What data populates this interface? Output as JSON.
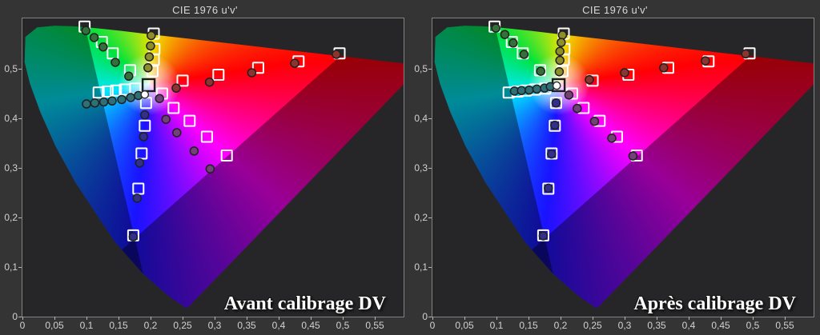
{
  "page": {
    "background": "#343434"
  },
  "panels": [
    {
      "title": "CIE 1976 u'v'",
      "caption": "Avant calibrage DV"
    },
    {
      "title": "CIE 1976 u'v'",
      "caption": "Après calibrage DV"
    }
  ],
  "axes": {
    "x_tick_labels": [
      "0",
      "0,05",
      "0,1",
      "0,15",
      "0,2",
      "0,25",
      "0,3",
      "0,35",
      "0,4",
      "0,45",
      "0,5",
      "0,55"
    ],
    "y_tick_labels": [
      "0",
      "0,1",
      "0,2",
      "0,3",
      "0,4",
      "0,5"
    ],
    "x_tick_values": [
      0,
      0.05,
      0.1,
      0.15,
      0.2,
      0.25,
      0.3,
      0.35,
      0.4,
      0.45,
      0.5,
      0.55
    ],
    "y_tick_values": [
      0,
      0.1,
      0.2,
      0.3,
      0.4,
      0.5
    ],
    "xlim": [
      0,
      0.595
    ],
    "ylim": [
      0,
      0.602
    ]
  },
  "marker_colors": {
    "target_stroke": "#ffffff",
    "white_target_stroke": "#1c1c1c",
    "circle_stroke": "#202020",
    "green": "#35703a",
    "yellow": "#8e8e2a",
    "red": "#8c3430",
    "magenta": "#73407a",
    "blue": "#31308c",
    "cyan": "#2e7076",
    "white": "#ffffff"
  },
  "chart_data": [
    {
      "type": "scatter",
      "title": "CIE 1976 u'v'",
      "annotation": "Avant calibrage DV",
      "legend": "none",
      "grid": false,
      "targets": {
        "marker": "open-square",
        "white": [
          0.197,
          0.467
        ],
        "branches": {
          "green": [
            [
              0.097,
              0.585
            ],
            [
              0.124,
              0.554
            ],
            [
              0.141,
              0.531
            ],
            [
              0.168,
              0.497
            ]
          ],
          "yellow": [
            [
              0.205,
              0.571
            ],
            [
              0.206,
              0.54
            ],
            [
              0.205,
              0.518
            ],
            [
              0.203,
              0.495
            ]
          ],
          "red": [
            [
              0.25,
              0.476
            ],
            [
              0.306,
              0.488
            ],
            [
              0.368,
              0.502
            ],
            [
              0.431,
              0.515
            ],
            [
              0.495,
              0.531
            ]
          ],
          "magenta": [
            [
              0.218,
              0.45
            ],
            [
              0.236,
              0.421
            ],
            [
              0.261,
              0.395
            ],
            [
              0.288,
              0.363
            ],
            [
              0.319,
              0.325
            ]
          ],
          "blue": [
            [
              0.193,
              0.431
            ],
            [
              0.191,
              0.385
            ],
            [
              0.186,
              0.329
            ],
            [
              0.181,
              0.258
            ],
            [
              0.173,
              0.164
            ]
          ],
          "cyan": [
            [
              0.176,
              0.46
            ],
            [
              0.16,
              0.458
            ],
            [
              0.146,
              0.456
            ],
            [
              0.133,
              0.454
            ],
            [
              0.119,
              0.452
            ]
          ]
        }
      },
      "measured": {
        "marker": "circle",
        "white": [
          0.191,
          0.448
        ],
        "branches": {
          "green": {
            "color": "green",
            "points": [
              [
                0.099,
                0.577
              ],
              [
                0.112,
                0.563
              ],
              [
                0.126,
                0.544
              ],
              [
                0.145,
                0.513
              ],
              [
                0.166,
                0.485
              ]
            ]
          },
          "yellow": {
            "color": "yellow",
            "points": [
              [
                0.201,
                0.567
              ],
              [
                0.2,
                0.546
              ],
              [
                0.198,
                0.524
              ],
              [
                0.196,
                0.502
              ]
            ]
          },
          "red": {
            "color": "red",
            "points": [
              [
                0.24,
                0.461
              ],
              [
                0.292,
                0.473
              ],
              [
                0.358,
                0.492
              ],
              [
                0.425,
                0.511
              ],
              [
                0.49,
                0.529
              ]
            ]
          },
          "magenta": {
            "color": "magenta",
            "points": [
              [
                0.214,
                0.44
              ],
              [
                0.224,
                0.398
              ],
              [
                0.241,
                0.371
              ],
              [
                0.268,
                0.334
              ],
              [
                0.293,
                0.298
              ]
            ]
          },
          "blue": {
            "color": "blue",
            "points": [
              [
                0.191,
                0.407
              ],
              [
                0.189,
                0.363
              ],
              [
                0.183,
                0.31
              ],
              [
                0.179,
                0.239
              ],
              [
                0.173,
                0.161
              ]
            ]
          },
          "cyan": {
            "color": "cyan",
            "points": [
              [
                0.1,
                0.429
              ],
              [
                0.113,
                0.431
              ],
              [
                0.127,
                0.433
              ],
              [
                0.14,
                0.435
              ],
              [
                0.155,
                0.438
              ],
              [
                0.169,
                0.442
              ],
              [
                0.181,
                0.446
              ]
            ]
          }
        }
      }
    },
    {
      "type": "scatter",
      "title": "CIE 1976 u'v'",
      "annotation": "Après calibrage DV",
      "legend": "none",
      "grid": false,
      "targets": {
        "marker": "open-square",
        "white": [
          0.197,
          0.467
        ],
        "branches": {
          "green": [
            [
              0.097,
              0.585
            ],
            [
              0.124,
              0.554
            ],
            [
              0.141,
              0.531
            ],
            [
              0.168,
              0.497
            ]
          ],
          "yellow": [
            [
              0.205,
              0.571
            ],
            [
              0.206,
              0.54
            ],
            [
              0.205,
              0.518
            ],
            [
              0.203,
              0.495
            ]
          ],
          "red": [
            [
              0.25,
              0.476
            ],
            [
              0.306,
              0.488
            ],
            [
              0.368,
              0.502
            ],
            [
              0.431,
              0.515
            ],
            [
              0.495,
              0.531
            ]
          ],
          "magenta": [
            [
              0.218,
              0.45
            ],
            [
              0.236,
              0.421
            ],
            [
              0.261,
              0.395
            ],
            [
              0.288,
              0.363
            ],
            [
              0.319,
              0.325
            ]
          ],
          "blue": [
            [
              0.193,
              0.431
            ],
            [
              0.191,
              0.385
            ],
            [
              0.186,
              0.329
            ],
            [
              0.181,
              0.258
            ],
            [
              0.173,
              0.164
            ]
          ],
          "cyan": [
            [
              0.176,
              0.46
            ],
            [
              0.16,
              0.458
            ],
            [
              0.146,
              0.456
            ],
            [
              0.133,
              0.454
            ],
            [
              0.119,
              0.452
            ]
          ]
        }
      },
      "measured": {
        "marker": "circle",
        "white": [
          0.194,
          0.466
        ],
        "branches": {
          "green": {
            "color": "green",
            "points": [
              [
                0.099,
                0.582
              ],
              [
                0.113,
                0.569
              ],
              [
                0.126,
                0.552
              ],
              [
                0.143,
                0.529
              ],
              [
                0.169,
                0.495
              ]
            ]
          },
          "yellow": {
            "color": "yellow",
            "points": [
              [
                0.203,
                0.568
              ],
              [
                0.201,
                0.553
              ],
              [
                0.199,
                0.535
              ],
              [
                0.199,
                0.517
              ],
              [
                0.198,
                0.494
              ]
            ]
          },
          "red": {
            "color": "red",
            "points": [
              [
                0.245,
                0.478
              ],
              [
                0.3,
                0.492
              ],
              [
                0.361,
                0.502
              ],
              [
                0.426,
                0.516
              ],
              [
                0.489,
                0.53
              ]
            ]
          },
          "magenta": {
            "color": "magenta",
            "points": [
              [
                0.213,
                0.447
              ],
              [
                0.226,
                0.42
              ],
              [
                0.253,
                0.394
              ],
              [
                0.28,
                0.36
              ],
              [
                0.313,
                0.324
              ]
            ]
          },
          "blue": {
            "color": "blue",
            "points": [
              [
                0.193,
                0.431
              ],
              [
                0.191,
                0.386
              ],
              [
                0.186,
                0.328
              ],
              [
                0.181,
                0.259
              ],
              [
                0.173,
                0.163
              ]
            ]
          },
          "cyan": {
            "color": "cyan",
            "points": [
              [
                0.128,
                0.455
              ],
              [
                0.139,
                0.456
              ],
              [
                0.151,
                0.457
              ],
              [
                0.163,
                0.459
              ],
              [
                0.175,
                0.461
              ],
              [
                0.184,
                0.464
              ]
            ]
          }
        }
      }
    }
  ]
}
